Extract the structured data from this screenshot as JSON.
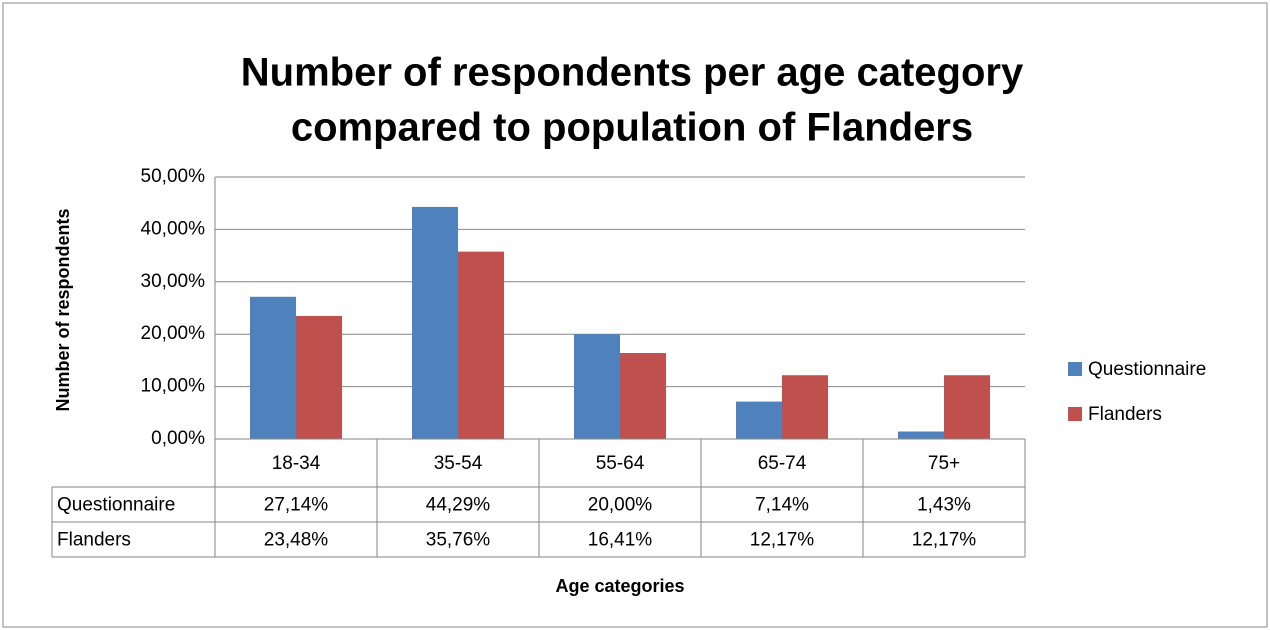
{
  "chart_data": {
    "type": "bar",
    "title": "Number of respondents per age category",
    "subtitle": "compared to population of Flanders",
    "y_label": "Number of respondents",
    "x_label": "Age categories",
    "categories": [
      "18-34",
      "35-54",
      "55-64",
      "65-74",
      "75+"
    ],
    "series": [
      {
        "name": "Questionnaire",
        "color": "#4f81bd",
        "values": [
          27.14,
          44.29,
          20.0,
          7.14,
          1.43
        ],
        "value_labels": [
          "27,14%",
          "44,29%",
          "20,00%",
          "7,14%",
          "1,43%"
        ]
      },
      {
        "name": "Flanders",
        "color": "#c0504d",
        "values": [
          23.48,
          35.76,
          16.41,
          12.17,
          12.17
        ],
        "value_labels": [
          "23,48%",
          "35,76%",
          "16,41%",
          "12,17%",
          "12,17%"
        ]
      }
    ],
    "ylim": [
      0,
      50
    ],
    "yticks": [
      {
        "value": 0,
        "label": "0,00%"
      },
      {
        "value": 10,
        "label": "10,00%"
      },
      {
        "value": 20,
        "label": "20,00%"
      },
      {
        "value": 30,
        "label": "30,00%"
      },
      {
        "value": 40,
        "label": "40,00%"
      },
      {
        "value": 50,
        "label": "50,00%"
      }
    ],
    "grid": true,
    "legend": "right"
  }
}
